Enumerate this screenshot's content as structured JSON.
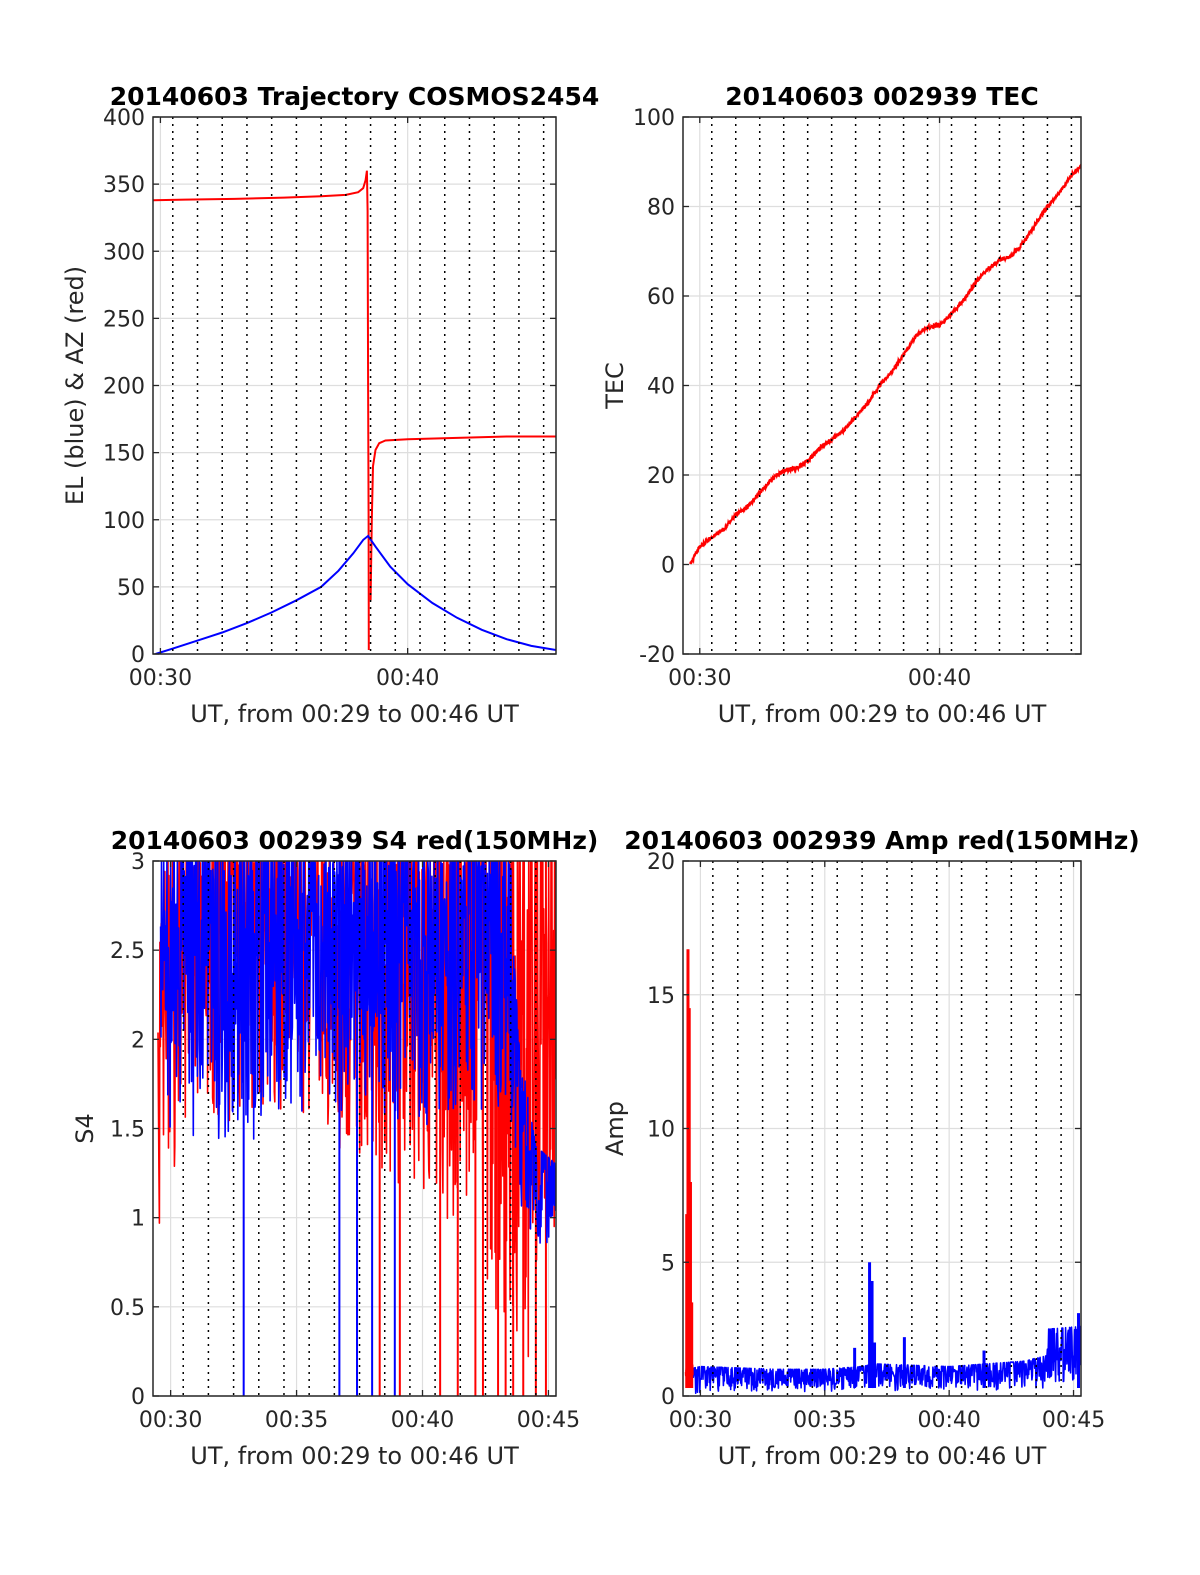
{
  "figure": {
    "x_marks": [
      30.5,
      31.5,
      32.5,
      33.5,
      34.5,
      35.5,
      36.5,
      37.5,
      38.5,
      39.5,
      40.5,
      41.5,
      42.5,
      43.5,
      44.5,
      45.5
    ]
  },
  "chart_data": [
    {
      "type": "line",
      "title": "20140603 Trajectory COSMOS2454",
      "xlabel": "UT, from 00:29 to 00:46 UT",
      "ylabel": "EL (blue) & AZ (red)",
      "xlim": [
        29.7,
        46.0
      ],
      "ylim": [
        0,
        400
      ],
      "xticks": [
        30,
        40
      ],
      "xtick_labels": [
        "00:30",
        "00:40"
      ],
      "yticks": [
        0,
        50,
        100,
        150,
        200,
        250,
        300,
        350,
        400
      ],
      "ytick_labels": [
        "0",
        "50",
        "100",
        "150",
        "200",
        "250",
        "300",
        "350",
        "400"
      ],
      "grid": true,
      "series": [
        {
          "color": "#ff0000",
          "segments": [
            [
              [
                29.7,
                338
              ],
              [
                31,
                338.5
              ],
              [
                33,
                339
              ],
              [
                35,
                340
              ],
              [
                36.5,
                341
              ],
              [
                37.5,
                342
              ],
              [
                38.0,
                344
              ],
              [
                38.2,
                347
              ],
              [
                38.3,
                353
              ],
              [
                38.35,
                360
              ],
              [
                38.38,
                330
              ],
              [
                38.4,
                200
              ],
              [
                38.42,
                100
              ],
              [
                38.43,
                3
              ]
            ],
            [
              [
                38.5,
                40
              ],
              [
                38.55,
                100
              ],
              [
                38.6,
                140
              ],
              [
                38.7,
                152
              ],
              [
                38.85,
                157
              ],
              [
                39.1,
                159
              ],
              [
                40,
                160
              ],
              [
                42,
                161
              ],
              [
                44,
                162
              ],
              [
                46.0,
                162
              ]
            ]
          ]
        },
        {
          "color": "#0000ff",
          "segments": [
            [
              [
                29.8,
                0
              ],
              [
                30.5,
                4
              ],
              [
                31.5,
                10
              ],
              [
                32.5,
                16
              ],
              [
                33.5,
                23
              ],
              [
                34.5,
                31
              ],
              [
                35.5,
                40
              ],
              [
                36.5,
                50
              ],
              [
                37.2,
                62
              ],
              [
                37.8,
                75
              ],
              [
                38.2,
                85
              ],
              [
                38.4,
                88
              ],
              [
                38.7,
                80
              ],
              [
                39.3,
                65
              ],
              [
                40,
                52
              ],
              [
                41,
                38
              ],
              [
                42,
                27
              ],
              [
                43,
                18
              ],
              [
                44,
                11
              ],
              [
                45,
                6
              ],
              [
                46.0,
                3
              ]
            ]
          ]
        }
      ]
    },
    {
      "type": "line",
      "title": "20140603 002939 TEC",
      "xlabel": "UT, from 00:29 to 00:46 UT",
      "ylabel": "TEC",
      "xlim": [
        29.3,
        45.9
      ],
      "ylim": [
        -20,
        100
      ],
      "xticks": [
        30,
        40
      ],
      "xtick_labels": [
        "00:30",
        "00:40"
      ],
      "yticks": [
        -20,
        0,
        20,
        40,
        60,
        80,
        100
      ],
      "ytick_labels": [
        "-20",
        "0",
        "20",
        "40",
        "60",
        "80",
        "100"
      ],
      "grid": true,
      "series": [
        {
          "color": "#ff0000",
          "noise": 0.45,
          "segments": [
            [
              [
                29.6,
                0
              ],
              [
                30,
                4
              ],
              [
                30.5,
                6
              ],
              [
                31,
                8
              ],
              [
                31.5,
                11
              ],
              [
                32,
                13
              ],
              [
                32.5,
                16
              ],
              [
                33,
                19
              ],
              [
                33.5,
                21
              ],
              [
                34,
                21.5
              ],
              [
                34.5,
                23
              ],
              [
                35,
                26
              ],
              [
                35.5,
                28
              ],
              [
                36,
                30
              ],
              [
                36.5,
                33
              ],
              [
                37,
                36
              ],
              [
                37.5,
                40
              ],
              [
                38,
                43
              ],
              [
                38.5,
                47
              ],
              [
                39,
                51
              ],
              [
                39.5,
                53
              ],
              [
                40,
                53.5
              ],
              [
                40.5,
                56
              ],
              [
                41,
                59
              ],
              [
                41.5,
                63
              ],
              [
                42,
                66
              ],
              [
                42.5,
                68
              ],
              [
                43,
                69
              ],
              [
                43.5,
                72
              ],
              [
                44,
                76
              ],
              [
                44.5,
                80
              ],
              [
                45,
                83
              ],
              [
                45.5,
                87
              ],
              [
                45.9,
                89
              ]
            ]
          ]
        }
      ]
    },
    {
      "type": "line",
      "title": "20140603 002939 S4 red(150MHz)",
      "xlabel": "UT, from 00:29 to 00:46 UT",
      "ylabel": "S4",
      "xlim": [
        29.3,
        45.3
      ],
      "ylim": [
        0,
        3
      ],
      "xticks": [
        30,
        35,
        40,
        45
      ],
      "xtick_labels": [
        "00:30",
        "00:35",
        "00:40",
        "00:45"
      ],
      "yticks": [
        0,
        0.5,
        1,
        1.5,
        2,
        2.5,
        3
      ],
      "ytick_labels": [
        "0",
        "0.5",
        "1",
        "1.5",
        "2",
        "2.5",
        "3"
      ],
      "grid": true,
      "series": [
        {
          "color": "#ff0000",
          "envelope": [
            [
              29.5,
              0.95,
              2.4
            ],
            [
              29.8,
              1.0,
              3.0
            ],
            [
              30.2,
              1.3,
              3.0
            ],
            [
              32,
              1.5,
              3.0
            ],
            [
              35,
              1.6,
              3.0
            ],
            [
              38,
              1.2,
              3.0
            ],
            [
              40,
              1.0,
              3.0
            ],
            [
              42,
              0.6,
              3.0
            ],
            [
              44,
              0.2,
              3.0
            ],
            [
              45.3,
              0.3,
              3.0
            ]
          ],
          "dropouts": [
            38.3,
            39.1,
            40.7,
            41.4,
            42.1,
            42.4,
            43.0,
            43.3,
            43.6,
            44.0,
            44.5,
            44.9
          ],
          "segments": []
        },
        {
          "color": "#0000ff",
          "envelope": [
            [
              29.6,
              1.5,
              3.0
            ],
            [
              30.5,
              1.4,
              3.0
            ],
            [
              33,
              1.4,
              3.0
            ],
            [
              35,
              1.5,
              3.0
            ],
            [
              36.5,
              1.6,
              3.0
            ],
            [
              38.5,
              1.5,
              3.0
            ],
            [
              40,
              1.5,
              3.0
            ],
            [
              42,
              1.6,
              3.0
            ],
            [
              43.5,
              1.5,
              3.0
            ],
            [
              43.8,
              1.0,
              2.0
            ],
            [
              44.5,
              0.85,
              1.4
            ],
            [
              45.3,
              0.8,
              1.3
            ]
          ],
          "dropouts": [
            32.9,
            36.7,
            37.4,
            38.0,
            38.9
          ],
          "segments": []
        }
      ]
    },
    {
      "type": "line",
      "title": "20140603 002939 Amp red(150MHz)",
      "xlabel": "UT, from 00:29 to 00:46 UT",
      "ylabel": "Amp",
      "xlim": [
        29.3,
        45.3
      ],
      "ylim": [
        0,
        20
      ],
      "xticks": [
        30,
        35,
        40,
        45
      ],
      "xtick_labels": [
        "00:30",
        "00:35",
        "00:40",
        "00:45"
      ],
      "yticks": [
        0,
        5,
        10,
        15,
        20
      ],
      "ytick_labels": [
        "0",
        "5",
        "10",
        "15",
        "20"
      ],
      "grid": true,
      "series": [
        {
          "color": "#0000ff",
          "envelope": [
            [
              29.5,
              0.1,
              1.0
            ],
            [
              30,
              0.1,
              1.1
            ],
            [
              33,
              0.15,
              1.0
            ],
            [
              35,
              0.15,
              1.0
            ],
            [
              36.5,
              0.2,
              1.1
            ],
            [
              37,
              0.2,
              1.2
            ],
            [
              40,
              0.2,
              1.1
            ],
            [
              43,
              0.2,
              1.3
            ],
            [
              43.9,
              0.3,
              1.5
            ],
            [
              44.0,
              0.5,
              2.5
            ],
            [
              45.3,
              0.5,
              2.6
            ]
          ],
          "spikes": [
            [
              36.2,
              1.8
            ],
            [
              36.8,
              5.0
            ],
            [
              36.9,
              4.3
            ],
            [
              37.0,
              2.0
            ],
            [
              38.2,
              2.2
            ],
            [
              41.4,
              1.7
            ],
            [
              45.2,
              3.1
            ]
          ],
          "segments": []
        },
        {
          "color": "#ff0000",
          "envelope": [
            [
              29.4,
              0.5,
              1.0
            ],
            [
              29.7,
              0.6,
              1.2
            ]
          ],
          "spikes": [
            [
              29.45,
              6.8
            ],
            [
              29.5,
              16.7
            ],
            [
              29.55,
              14.5
            ],
            [
              29.6,
              8.0
            ],
            [
              29.65,
              3.5
            ]
          ],
          "segments": []
        }
      ]
    }
  ]
}
